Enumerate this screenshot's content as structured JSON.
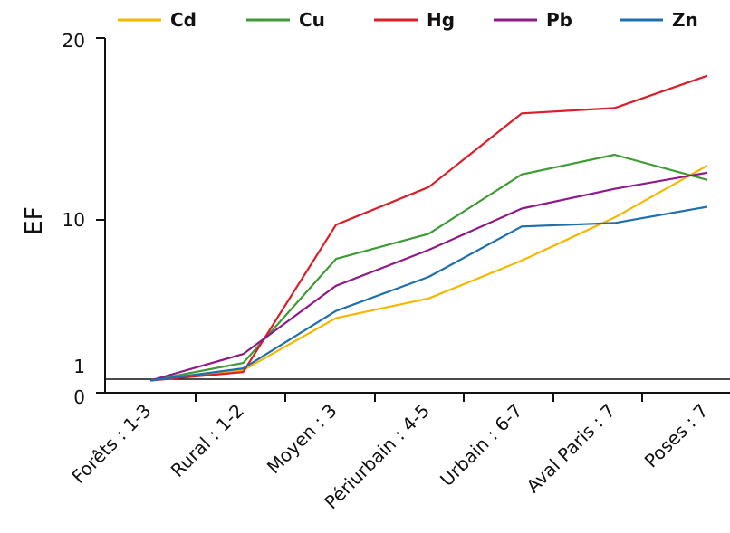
{
  "chart_data": {
    "type": "line",
    "title": "",
    "xlabel": "",
    "ylabel": "EF",
    "categories": [
      "Forêts : 1-3",
      "Rural : 1-2",
      "Moyen : 3",
      "Périurbain : 4-5",
      "Urbain : 6-7",
      "Aval Paris : 7",
      "Poses : 7"
    ],
    "yticks": [
      "0",
      "1",
      "10",
      "20"
    ],
    "grid": false,
    "legend_position": "top",
    "series": [
      {
        "name": "Cd",
        "color": "#f5b800",
        "values": [
          0.9,
          1.5,
          4.4,
          5.5,
          7.6,
          10.0,
          12.9
        ]
      },
      {
        "name": "Cu",
        "color": "#3f9b35",
        "values": [
          0.9,
          1.9,
          7.7,
          9.1,
          12.4,
          13.5,
          12.1
        ]
      },
      {
        "name": "Hg",
        "color": "#d81f2a",
        "values": [
          0.9,
          1.4,
          9.6,
          11.7,
          15.8,
          16.1,
          17.9
        ]
      },
      {
        "name": "Pb",
        "color": "#8e1b8a",
        "values": [
          0.9,
          2.4,
          6.2,
          8.2,
          10.5,
          11.6,
          12.5
        ]
      },
      {
        "name": "Zn",
        "color": "#1f6fad",
        "values": [
          0.9,
          1.6,
          4.8,
          6.7,
          9.5,
          9.7,
          10.6
        ]
      }
    ]
  }
}
